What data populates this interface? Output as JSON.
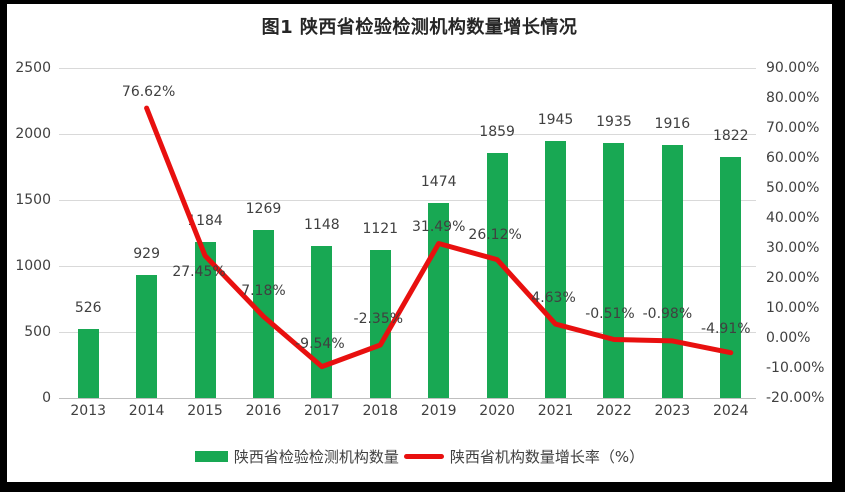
{
  "title": "图1 陕西省检验检测机构数量增长情况",
  "colors": {
    "bar": "#18A853",
    "line": "#E8100F",
    "grid": "#D9D9D9",
    "axis_line": "#BFBFBF",
    "text": "#404040",
    "title_text": "#262626",
    "panel_bg": "#FFFFFF",
    "frame_bg": "#000000"
  },
  "chart_data": {
    "type": "combo",
    "title": "图1 陕西省检验检测机构数量增长情况",
    "categories": [
      "2013",
      "2014",
      "2015",
      "2016",
      "2017",
      "2018",
      "2019",
      "2020",
      "2021",
      "2022",
      "2023",
      "2024"
    ],
    "series": [
      {
        "name": "陕西省检验检测机构数量",
        "type": "bar",
        "axis": "left",
        "values": [
          526,
          929,
          1184,
          1269,
          1148,
          1121,
          1474,
          1859,
          1945,
          1935,
          1916,
          1822
        ],
        "data_labels": [
          "526",
          "929",
          "1184",
          "1269",
          "1148",
          "1121",
          "1474",
          "1859",
          "1945",
          "1935",
          "1916",
          "1822"
        ]
      },
      {
        "name": "陕西省机构数量增长率（%）",
        "type": "line",
        "axis": "right",
        "values": [
          null,
          76.62,
          27.45,
          7.18,
          -9.54,
          -2.35,
          31.49,
          26.12,
          4.63,
          -0.51,
          -0.98,
          -4.91
        ],
        "data_labels": [
          null,
          "76.62%",
          "27.45%",
          "7.18%",
          "-9.54%",
          "-2.35%",
          "31.49%",
          "26.12%",
          "4.63%",
          "-0.51%",
          "-0.98%",
          "-4.91%"
        ]
      }
    ],
    "left_axis": {
      "min": 0,
      "max": 2500,
      "tick_labels": [
        "0",
        "500",
        "1000",
        "1500",
        "2000",
        "2500"
      ]
    },
    "right_axis": {
      "min": -20,
      "max": 90,
      "tick_labels": [
        "90.00%",
        "80.00%",
        "70.00%",
        "60.00%",
        "50.00%",
        "40.00%",
        "30.00%",
        "20.00%",
        "10.00%",
        "0.00%",
        "-10.00%",
        "-20.00%"
      ]
    },
    "grid": "horizontal",
    "legend_position": "bottom"
  }
}
